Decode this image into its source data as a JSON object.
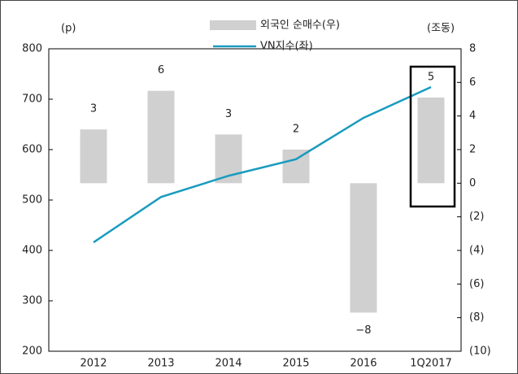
{
  "chart_data": {
    "type": "bar",
    "y_label": "(p)",
    "y2_label": "(조동)",
    "categories": [
      "2012",
      "2013",
      "2014",
      "2015",
      "2016",
      "1Q2017"
    ],
    "series": [
      {
        "name": "외국인 순매수(우)",
        "type": "bar",
        "axis": "y2",
        "color": "#d0d0d0",
        "values": [
          3.2,
          5.5,
          2.9,
          2.0,
          -7.7,
          5.1
        ],
        "value_labels": [
          "3",
          "6",
          "3",
          "2",
          "−8",
          "5"
        ]
      },
      {
        "name": "VN지수(좌)",
        "type": "line",
        "axis": "y",
        "color": "#1a9bbf",
        "values": [
          416,
          506,
          548,
          581,
          663,
          724
        ]
      }
    ],
    "ylim": [
      200,
      800
    ],
    "yticks": [
      200,
      300,
      400,
      500,
      600,
      700,
      800
    ],
    "y2lim": [
      -10,
      8
    ],
    "y2ticks": [
      {
        "value": -10,
        "label": "(10)"
      },
      {
        "value": -8,
        "label": "(8)"
      },
      {
        "value": -6,
        "label": "(6)"
      },
      {
        "value": -4,
        "label": "(4)"
      },
      {
        "value": -2,
        "label": "(2)"
      },
      0,
      2,
      4,
      6,
      8
    ],
    "grid": false
  }
}
